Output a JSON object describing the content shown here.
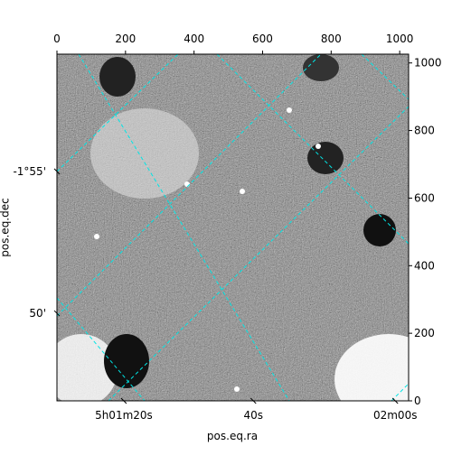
{
  "chart_data": {
    "type": "image",
    "xlabel": "pos.eq.ra",
    "ylabel": "pos.eq.dec",
    "xlim": [
      0,
      1026
    ],
    "ylim": [
      0,
      1026
    ],
    "xticks": [
      0,
      200,
      400,
      600,
      800,
      1000
    ],
    "yticks": [
      0,
      200,
      400,
      600,
      800,
      1000
    ],
    "wcs_xticks": [
      {
        "value": 195,
        "label": "5h01m20s"
      },
      {
        "value": 573,
        "label": "40s"
      },
      {
        "value": 987,
        "label": "02m00s"
      }
    ],
    "wcs_yticks": [
      {
        "value": 679,
        "label": "-1°55'"
      },
      {
        "value": 259,
        "label": "50'"
      }
    ],
    "grid_color": "#00e5e5"
  }
}
